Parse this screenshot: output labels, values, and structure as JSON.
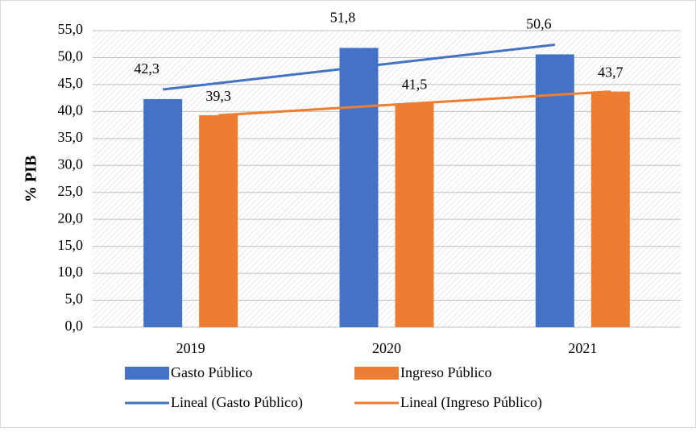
{
  "chart_data": {
    "type": "bar",
    "y_label": "% PIB",
    "categories": [
      "2019",
      "2020",
      "2021"
    ],
    "series": [
      {
        "name": "Gasto Público",
        "color": "#4472c4",
        "values": [
          42.3,
          51.8,
          50.6
        ],
        "value_labels": [
          "42,3",
          "51,8",
          "50,6"
        ],
        "trendline": {
          "name": "Lineal (Gasto Público)",
          "color": "#4472c4"
        }
      },
      {
        "name": "Ingreso Público",
        "color": "#ed7d31",
        "values": [
          39.3,
          41.5,
          43.7
        ],
        "value_labels": [
          "39,3",
          "41,5",
          "43,7"
        ],
        "trendline": {
          "name": "Lineal (Ingreso Público)",
          "color": "#ed7d31"
        }
      }
    ],
    "ylim": [
      0,
      55
    ],
    "yticks": [
      {
        "value": 0,
        "label": "0,0"
      },
      {
        "value": 5,
        "label": "5,0"
      },
      {
        "value": 10,
        "label": "10,0"
      },
      {
        "value": 15,
        "label": "15,0"
      },
      {
        "value": 20,
        "label": "20,0"
      },
      {
        "value": 25,
        "label": "25,0"
      },
      {
        "value": 30,
        "label": "30,0"
      },
      {
        "value": 35,
        "label": "35,0"
      },
      {
        "value": 40,
        "label": "40,0"
      },
      {
        "value": 45,
        "label": "45,0"
      },
      {
        "value": 50,
        "label": "50,0"
      },
      {
        "value": 55,
        "label": "55,0"
      }
    ],
    "grid": true
  }
}
